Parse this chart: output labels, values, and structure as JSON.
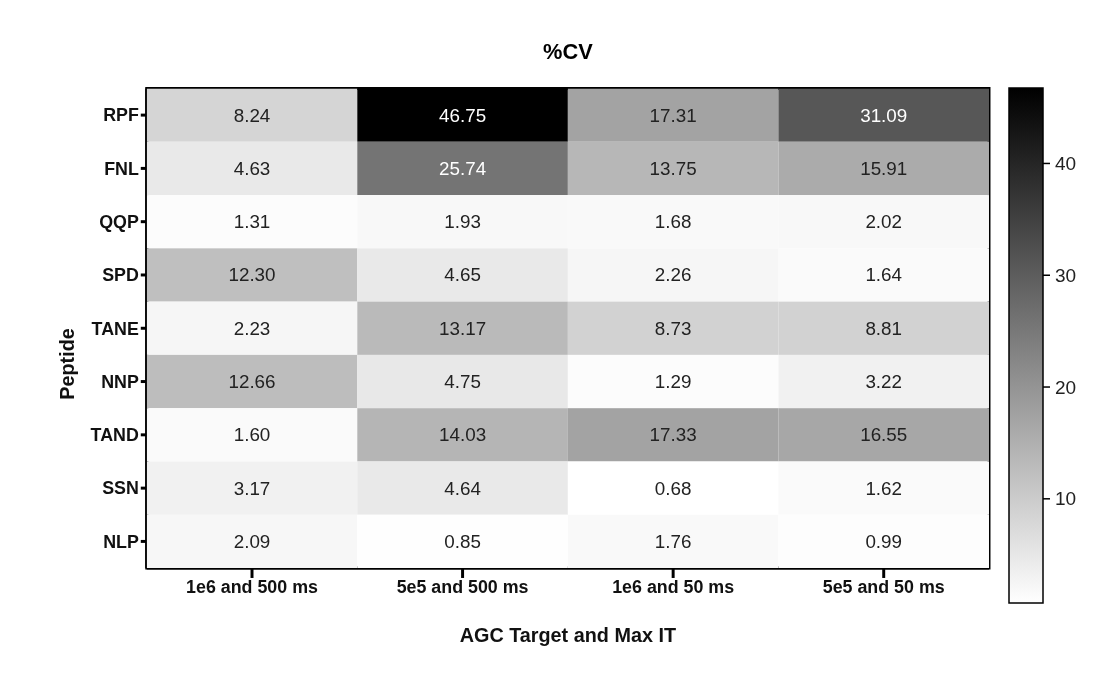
{
  "chart_data": {
    "type": "heatmap",
    "title": "%CV",
    "xlabel": "AGC Target and Max IT",
    "ylabel": "Peptide",
    "categories": [
      "1e6 and 500 ms",
      "5e5 and 500 ms",
      "1e6 and 50 ms",
      "5e5 and 50 ms"
    ],
    "y_categories": [
      "RPF",
      "FNL",
      "QQP",
      "SPD",
      "TANE",
      "NNP",
      "TAND",
      "SSN",
      "NLP"
    ],
    "cells": [
      [
        8.24,
        46.75,
        17.31,
        31.09
      ],
      [
        4.63,
        25.74,
        13.75,
        15.91
      ],
      [
        1.31,
        1.93,
        1.68,
        2.02
      ],
      [
        12.3,
        4.65,
        2.26,
        1.64
      ],
      [
        2.23,
        13.17,
        8.73,
        8.81
      ],
      [
        12.66,
        4.75,
        1.29,
        3.22
      ],
      [
        1.6,
        14.03,
        17.33,
        16.55
      ],
      [
        3.17,
        4.64,
        0.68,
        1.62
      ],
      [
        2.09,
        0.85,
        1.76,
        0.99
      ]
    ],
    "cell_labels": [
      [
        "8.24",
        "46.75",
        "17.31",
        "31.09"
      ],
      [
        "4.63",
        "25.74",
        "13.75",
        "15.91"
      ],
      [
        "1.31",
        "1.93",
        "1.68",
        "2.02"
      ],
      [
        "12.30",
        "4.65",
        "2.26",
        "1.64"
      ],
      [
        "2.23",
        "13.17",
        "8.73",
        "8.81"
      ],
      [
        "12.66",
        "4.75",
        "1.29",
        "3.22"
      ],
      [
        "1.60",
        "14.03",
        "17.33",
        "16.55"
      ],
      [
        "3.17",
        "4.64",
        "0.68",
        "1.62"
      ],
      [
        "2.09",
        "0.85",
        "1.76",
        "0.99"
      ]
    ],
    "clim": [
      0.68,
      46.75
    ],
    "cticks": [
      10,
      20,
      30,
      40
    ]
  }
}
